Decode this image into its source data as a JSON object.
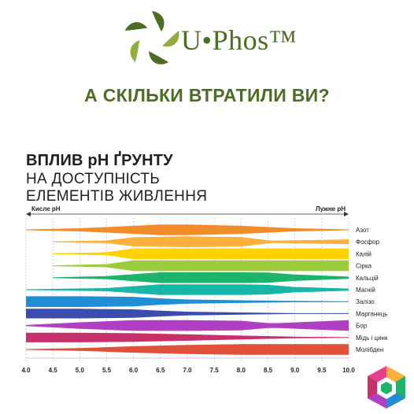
{
  "brand": {
    "name": "U•Phos™",
    "logo_icon": "leaf-wreath-logo",
    "colors": {
      "dark_green": "#4c6d24",
      "light_green": "#8fae3f"
    }
  },
  "headline": "А СКІЛЬКИ ВТРАТИЛИ ВИ?",
  "chart_data": {
    "type": "area",
    "title": "ВПЛИВ pH ҐРУНТУ",
    "subtitle_lines": [
      "НА ДОСТУПНІСТЬ",
      "ЕЛЕМЕНТІВ ЖИВЛЕННЯ"
    ],
    "x_left_label": "Кисле pH",
    "x_right_label": "Лужне pH",
    "xlim": [
      4.0,
      10.0
    ],
    "x_ticks": [
      "4.0",
      "4.5",
      "5.0",
      "5.5",
      "6.0",
      "6.5",
      "7.0",
      "7.5",
      "8.0",
      "8.5",
      "9.0",
      "9.5",
      "10.0"
    ],
    "grid": true,
    "series": [
      {
        "name": "Азот",
        "color": "#f28c28",
        "x": [
          4.0,
          5.0,
          6.0,
          6.5,
          7.0,
          8.0,
          9.0,
          10.0
        ],
        "width": [
          0.05,
          0.3,
          0.75,
          1.0,
          1.0,
          0.75,
          0.3,
          0.05
        ]
      },
      {
        "name": "Фосфор",
        "color": "#fbb03b",
        "x": [
          4.5,
          5.5,
          6.0,
          7.0,
          8.0,
          8.5,
          8.6,
          10.0
        ],
        "width": [
          0.05,
          0.25,
          0.85,
          1.0,
          0.9,
          0.3,
          0.2,
          0.45
        ]
      },
      {
        "name": "Калій",
        "color": "#ffd200",
        "x": [
          4.5,
          5.5,
          6.0,
          7.0,
          8.0,
          9.0,
          10.0
        ],
        "width": [
          0.05,
          0.3,
          1.0,
          1.0,
          1.0,
          1.0,
          1.0
        ]
      },
      {
        "name": "Сірка",
        "color": "#9ccc3c",
        "x": [
          4.5,
          5.5,
          6.0,
          7.0,
          8.0,
          9.0,
          10.0
        ],
        "width": [
          0.05,
          0.3,
          1.0,
          1.0,
          1.0,
          1.0,
          1.0
        ]
      },
      {
        "name": "Кальцій",
        "color": "#1db36b",
        "x": [
          4.5,
          5.5,
          6.5,
          7.0,
          8.0,
          8.5,
          9.0,
          10.0
        ],
        "width": [
          0.05,
          0.3,
          1.0,
          1.0,
          1.0,
          0.95,
          0.6,
          0.2
        ]
      },
      {
        "name": "Магній",
        "color": "#17b6a6",
        "x": [
          4.0,
          5.5,
          6.5,
          7.0,
          8.0,
          8.5,
          9.0,
          10.0
        ],
        "width": [
          0.05,
          0.3,
          1.0,
          1.0,
          1.0,
          0.9,
          0.5,
          0.2
        ]
      },
      {
        "name": "Залізо",
        "color": "#1e8fd6",
        "x": [
          4.0,
          5.0,
          6.0,
          6.5,
          7.0,
          8.0,
          9.0,
          10.0
        ],
        "width": [
          1.0,
          1.0,
          0.9,
          0.6,
          0.4,
          0.25,
          0.12,
          0.04
        ]
      },
      {
        "name": "Марганець",
        "color": "#3b4cae",
        "x": [
          4.0,
          5.0,
          6.0,
          6.5,
          7.0,
          8.0,
          9.0,
          10.0
        ],
        "width": [
          0.9,
          0.9,
          0.8,
          0.55,
          0.35,
          0.2,
          0.08,
          0.03
        ]
      },
      {
        "name": "Бор",
        "color": "#b03fc4",
        "x": [
          4.0,
          5.0,
          6.0,
          7.0,
          8.0,
          8.5,
          8.7,
          10.0
        ],
        "width": [
          0.1,
          0.6,
          1.0,
          1.0,
          0.9,
          0.45,
          0.45,
          1.0
        ]
      },
      {
        "name": "Мідь і цинк",
        "color": "#c7306b",
        "x": [
          4.0,
          5.0,
          6.0,
          7.0,
          8.0,
          9.0,
          10.0
        ],
        "width": [
          0.9,
          0.9,
          0.8,
          0.6,
          0.35,
          0.15,
          0.05
        ]
      },
      {
        "name": "Молібден",
        "color": "#e0503a",
        "x": [
          4.0,
          5.0,
          6.0,
          7.0,
          8.0,
          9.0,
          10.0
        ],
        "width": [
          0.05,
          0.25,
          0.6,
          0.85,
          1.0,
          1.0,
          1.0
        ]
      }
    ]
  },
  "badge": {
    "icon": "colorful-hexagon-badge-icon"
  }
}
